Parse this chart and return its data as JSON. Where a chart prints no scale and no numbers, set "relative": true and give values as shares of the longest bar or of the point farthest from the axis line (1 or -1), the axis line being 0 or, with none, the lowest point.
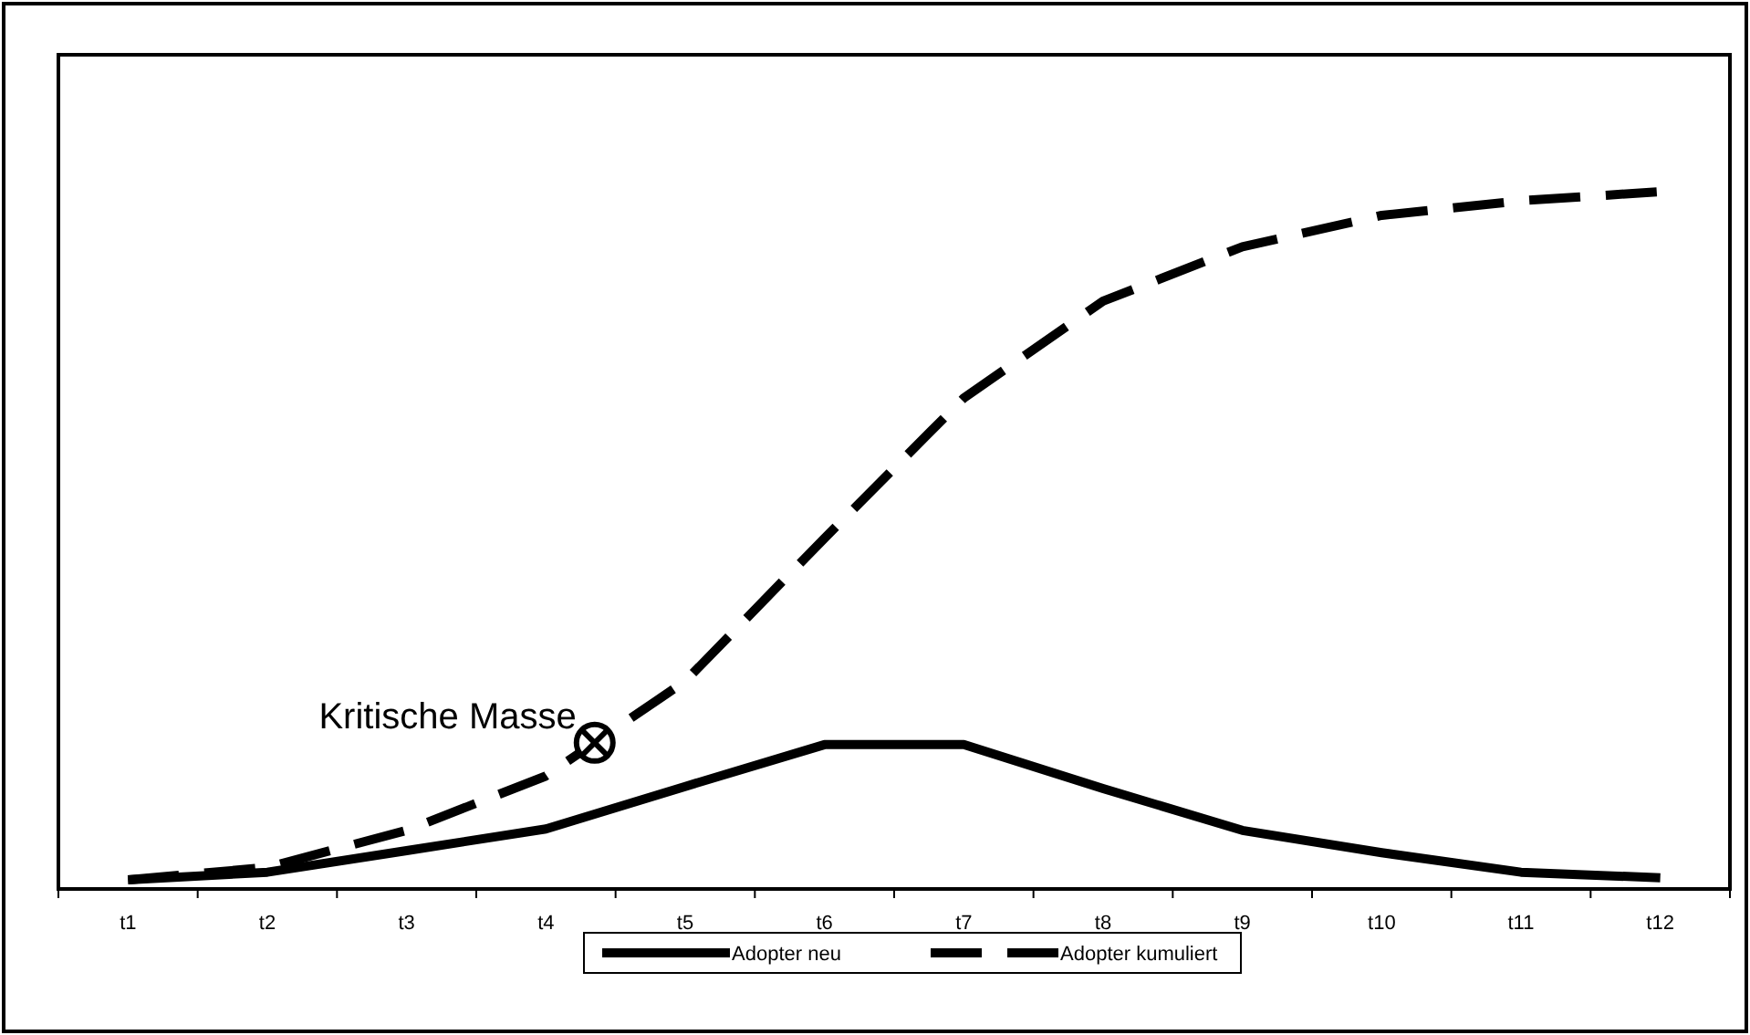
{
  "chart_data": {
    "type": "line",
    "relative": true,
    "categories": [
      "t1",
      "t2",
      "t3",
      "t4",
      "t5",
      "t6",
      "t7",
      "t8",
      "t9",
      "t10",
      "t11",
      "t12"
    ],
    "series": [
      {
        "name": "Adopter neu",
        "color": "#000000",
        "line_style": "solid",
        "values": [
          0.013,
          0.024,
          0.055,
          0.086,
          0.147,
          0.207,
          0.207,
          0.144,
          0.084,
          0.052,
          0.024,
          0.016
        ]
      },
      {
        "name": "Adopter kumuliert",
        "color": "#000000",
        "line_style": "dashed",
        "values": [
          0.013,
          0.031,
          0.084,
          0.162,
          0.298,
          0.503,
          0.704,
          0.843,
          0.921,
          0.966,
          0.987,
          1
        ]
      }
    ],
    "annotations": [
      "Kritische Masse"
    ],
    "legend": "bottom",
    "marker": "none"
  }
}
